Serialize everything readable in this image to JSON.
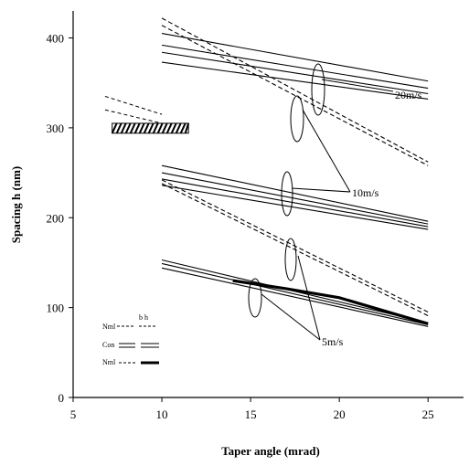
{
  "chart_data": {
    "type": "line",
    "xlabel": "Taper angle (mrad)",
    "ylabel": "Spacing h (nm)",
    "xlim": [
      5,
      27
    ],
    "ylim": [
      0,
      430
    ],
    "xticks": [
      5,
      10,
      15,
      20,
      25
    ],
    "yticks": [
      0,
      100,
      200,
      300,
      400
    ],
    "annotations": {
      "v20": "20m/s",
      "v10": "10m/s",
      "v5": "5m/s"
    },
    "legend_header": "b    h",
    "legend_labels": [
      "Nml",
      "Con",
      "Nml"
    ],
    "series": [
      {
        "group": "20m/s",
        "style": "solid",
        "x": [
          10,
          25
        ],
        "y": [
          405,
          352
        ]
      },
      {
        "group": "20m/s",
        "style": "solid",
        "x": [
          10,
          25
        ],
        "y": [
          392,
          344
        ]
      },
      {
        "group": "20m/s",
        "style": "solid",
        "x": [
          10,
          25
        ],
        "y": [
          384,
          338
        ]
      },
      {
        "group": "20m/s",
        "style": "solid",
        "x": [
          10,
          25
        ],
        "y": [
          373,
          332
        ]
      },
      {
        "group": "20m/s",
        "style": "dashed",
        "x": [
          10,
          25
        ],
        "y": [
          422,
          262
        ]
      },
      {
        "group": "20m/s",
        "style": "dashed",
        "x": [
          10,
          25
        ],
        "y": [
          414,
          258
        ]
      },
      {
        "group": "10m/s",
        "style": "solid",
        "x": [
          10,
          25
        ],
        "y": [
          258,
          196
        ]
      },
      {
        "group": "10m/s",
        "style": "solid",
        "x": [
          10,
          25
        ],
        "y": [
          250,
          193
        ]
      },
      {
        "group": "10m/s",
        "style": "solid",
        "x": [
          10,
          25
        ],
        "y": [
          243,
          190
        ]
      },
      {
        "group": "10m/s",
        "style": "solid",
        "x": [
          10,
          25
        ],
        "y": [
          236,
          187
        ]
      },
      {
        "group": "10m/s",
        "style": "dashed",
        "x": [
          10,
          25
        ],
        "y": [
          242,
          95
        ]
      },
      {
        "group": "10m/s",
        "style": "dashed",
        "x": [
          10,
          25
        ],
        "y": [
          238,
          91
        ]
      },
      {
        "group": "5m/s",
        "style": "solid",
        "x": [
          10,
          25
        ],
        "y": [
          153,
          83
        ]
      },
      {
        "group": "5m/s",
        "style": "solid",
        "x": [
          10,
          25
        ],
        "y": [
          149,
          81
        ]
      },
      {
        "group": "5m/s",
        "style": "solid",
        "x": [
          10,
          25
        ],
        "y": [
          144,
          79
        ]
      },
      {
        "group": "5m/s",
        "style": "thick",
        "x": [
          14,
          17,
          20,
          25
        ],
        "y": [
          130,
          121,
          111,
          82
        ]
      }
    ],
    "inset_dashed": [
      {
        "x": [
          6.8,
          10
        ],
        "y": [
          335,
          315
        ]
      },
      {
        "x": [
          6.8,
          10
        ],
        "y": [
          320,
          305
        ]
      }
    ],
    "inset_hatched": {
      "x": [
        7.2,
        11.5
      ],
      "y": [
        294,
        305
      ]
    }
  },
  "colors": {
    "ink": "#000000",
    "background": "#ffffff"
  }
}
